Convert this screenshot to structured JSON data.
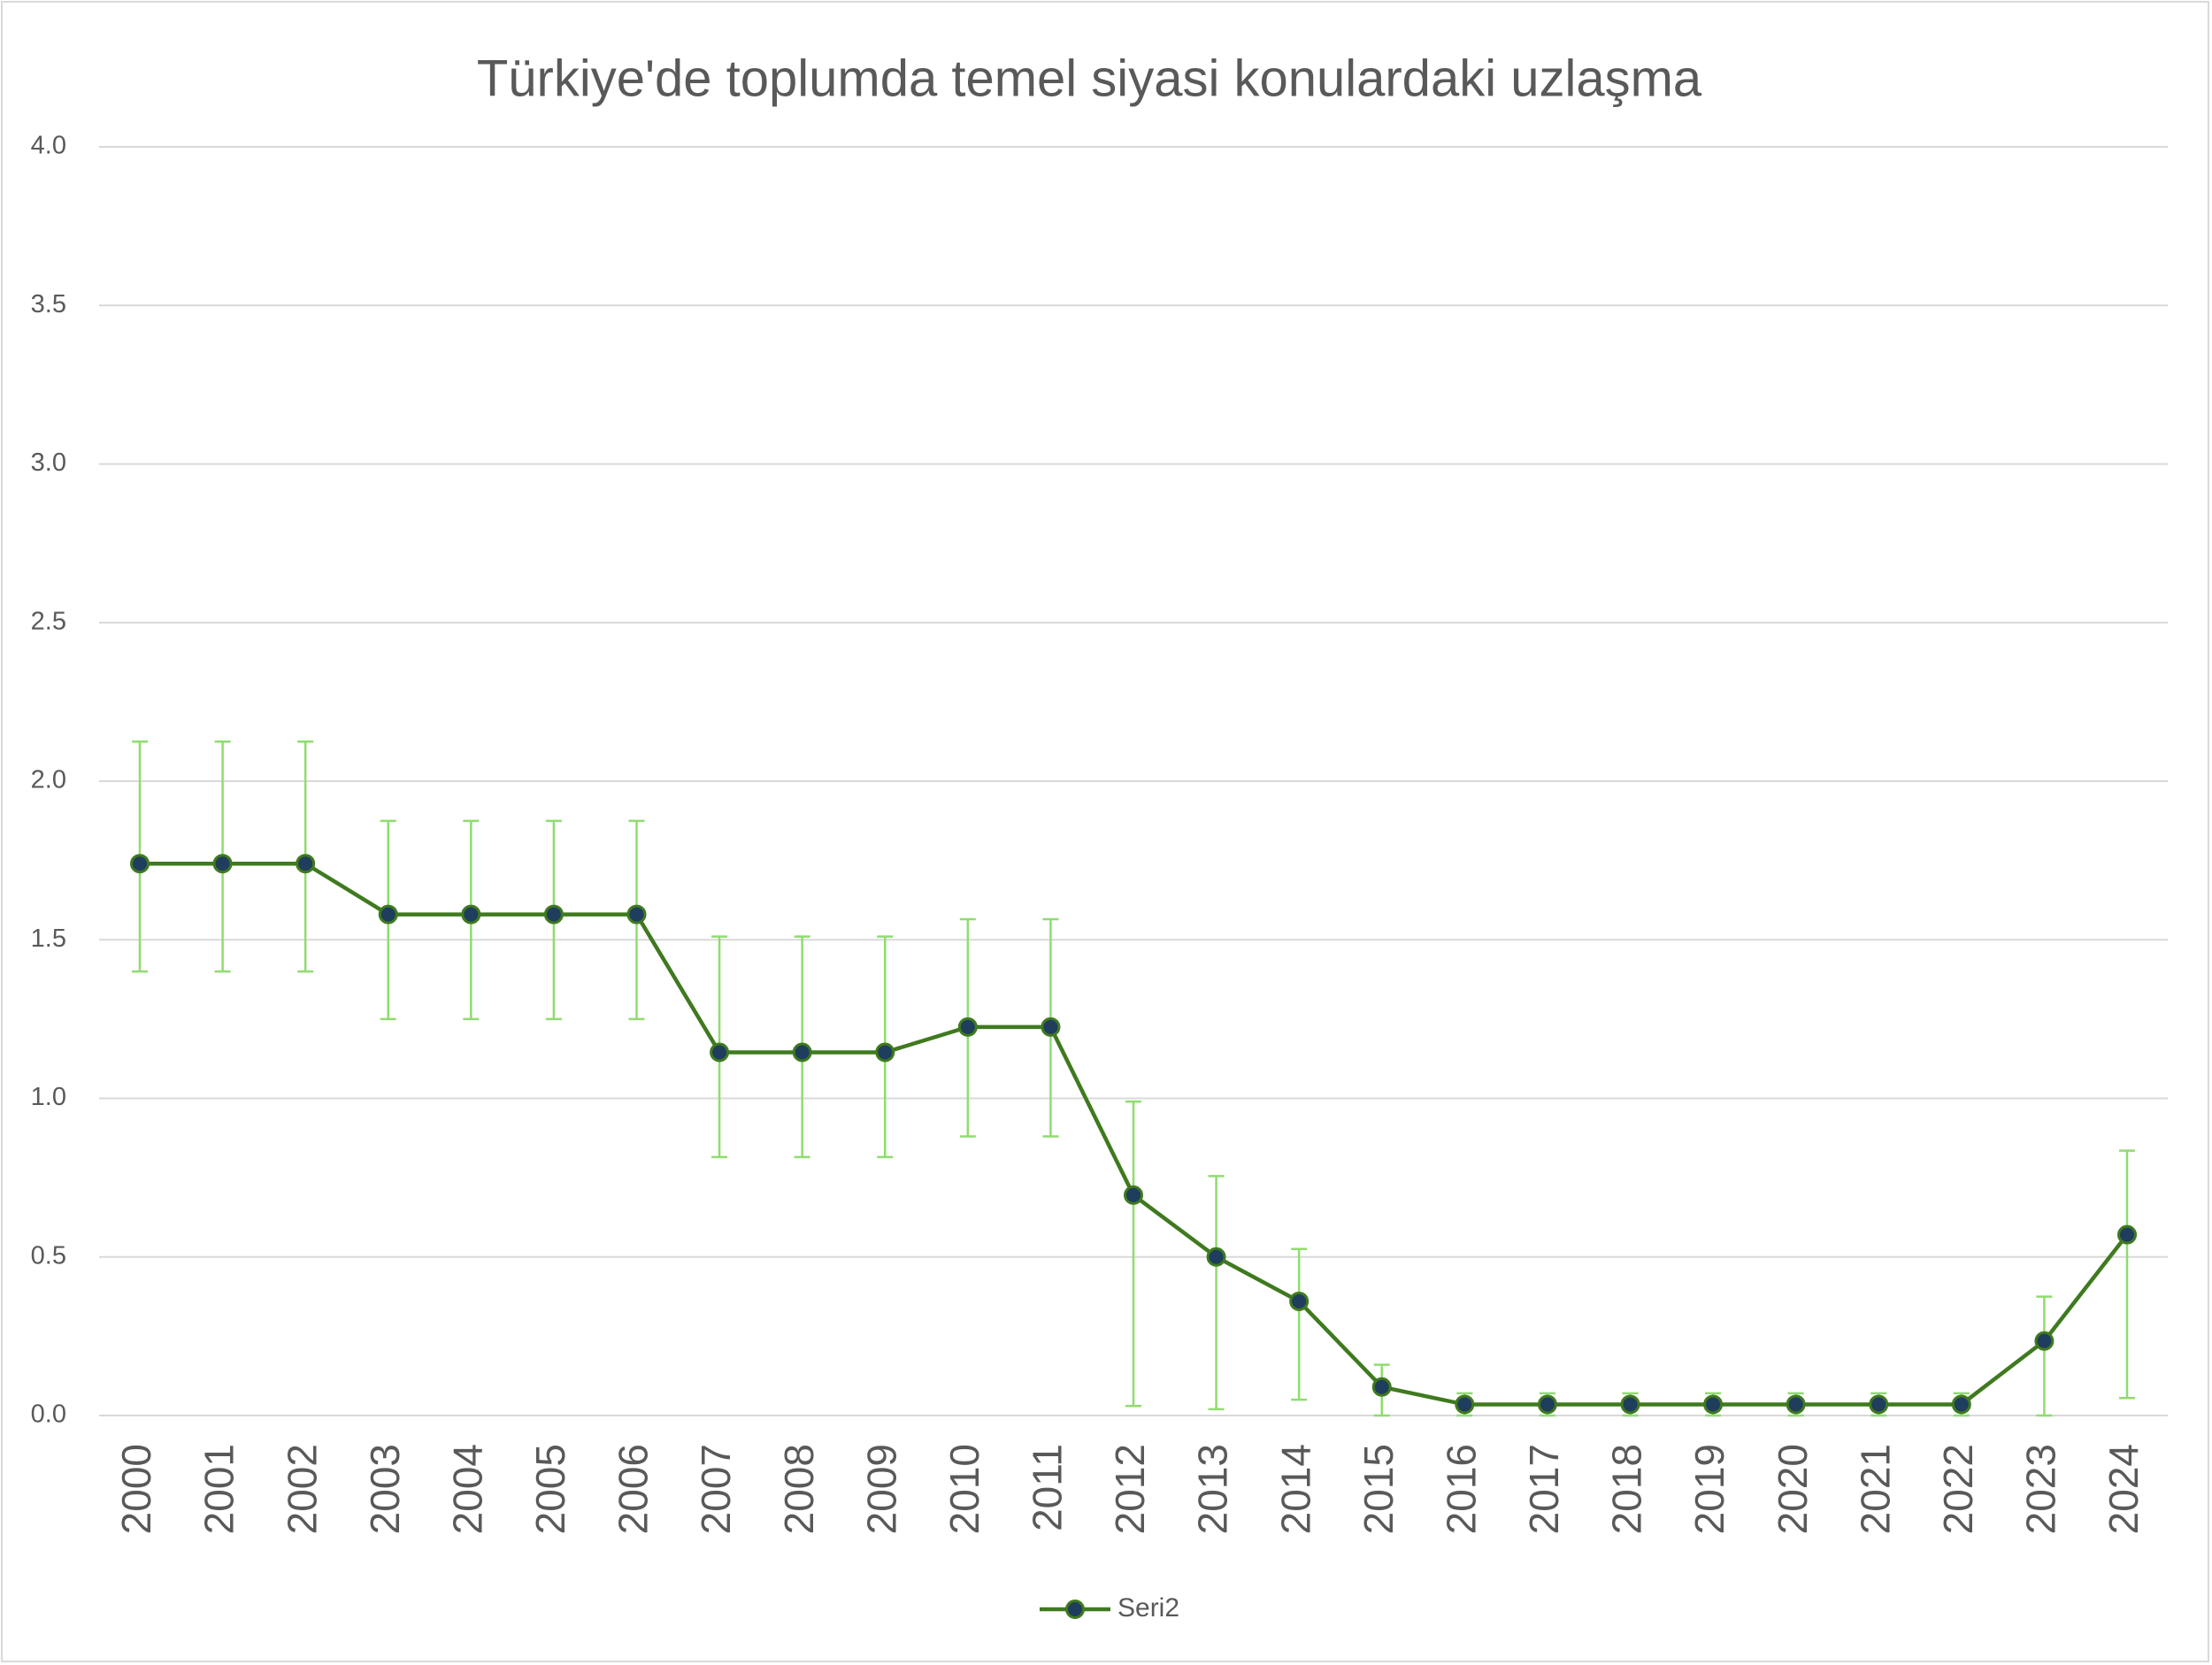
{
  "chart_data": {
    "type": "line",
    "title": "Türkiye'de toplumda temel siyasi konulardaki uzlaşma",
    "categories": [
      "2000",
      "2001",
      "2002",
      "2003",
      "2004",
      "2005",
      "2006",
      "2007",
      "2008",
      "2009",
      "2010",
      "2011",
      "2012",
      "2013",
      "2014",
      "2015",
      "2016",
      "2017",
      "2018",
      "2019",
      "2020",
      "2021",
      "2022",
      "2023",
      "2024"
    ],
    "series": [
      {
        "name": "Seri2",
        "color": "#3f7a1f",
        "marker_color": "#1f3d5c",
        "error_color": "#8fdc6f",
        "values": [
          1.74,
          1.74,
          1.74,
          1.58,
          1.58,
          1.58,
          1.58,
          1.145,
          1.145,
          1.145,
          1.225,
          1.225,
          0.695,
          0.5,
          0.36,
          0.09,
          0.035,
          0.035,
          0.035,
          0.035,
          0.035,
          0.035,
          0.035,
          0.235,
          0.57
        ],
        "lower": [
          1.4,
          1.4,
          1.4,
          1.25,
          1.25,
          1.25,
          1.25,
          0.815,
          0.815,
          0.815,
          0.88,
          0.88,
          0.03,
          0.02,
          0.05,
          0.0,
          0.0,
          0.0,
          0.0,
          0.0,
          0.0,
          0.0,
          0.0,
          0.0,
          0.055
        ],
        "upper": [
          2.125,
          2.125,
          2.125,
          1.875,
          1.875,
          1.875,
          1.875,
          1.51,
          1.51,
          1.51,
          1.565,
          1.565,
          0.99,
          0.755,
          0.525,
          0.16,
          0.07,
          0.07,
          0.07,
          0.07,
          0.07,
          0.07,
          0.07,
          0.375,
          0.835
        ]
      }
    ],
    "ylim": [
      0,
      4
    ],
    "yticks": [
      {
        "value": 0,
        "label": "0.0"
      },
      {
        "value": 0.5,
        "label": "0.5"
      },
      {
        "value": 1,
        "label": "1.0"
      },
      {
        "value": 1.5,
        "label": "1.5"
      },
      {
        "value": 2,
        "label": "2.0"
      },
      {
        "value": 2.5,
        "label": "2.5"
      },
      {
        "value": 3,
        "label": "3.0"
      },
      {
        "value": 3.5,
        "label": "3.5"
      },
      {
        "value": 4,
        "label": "4.0"
      }
    ],
    "grid": true,
    "legend": "bottom"
  }
}
